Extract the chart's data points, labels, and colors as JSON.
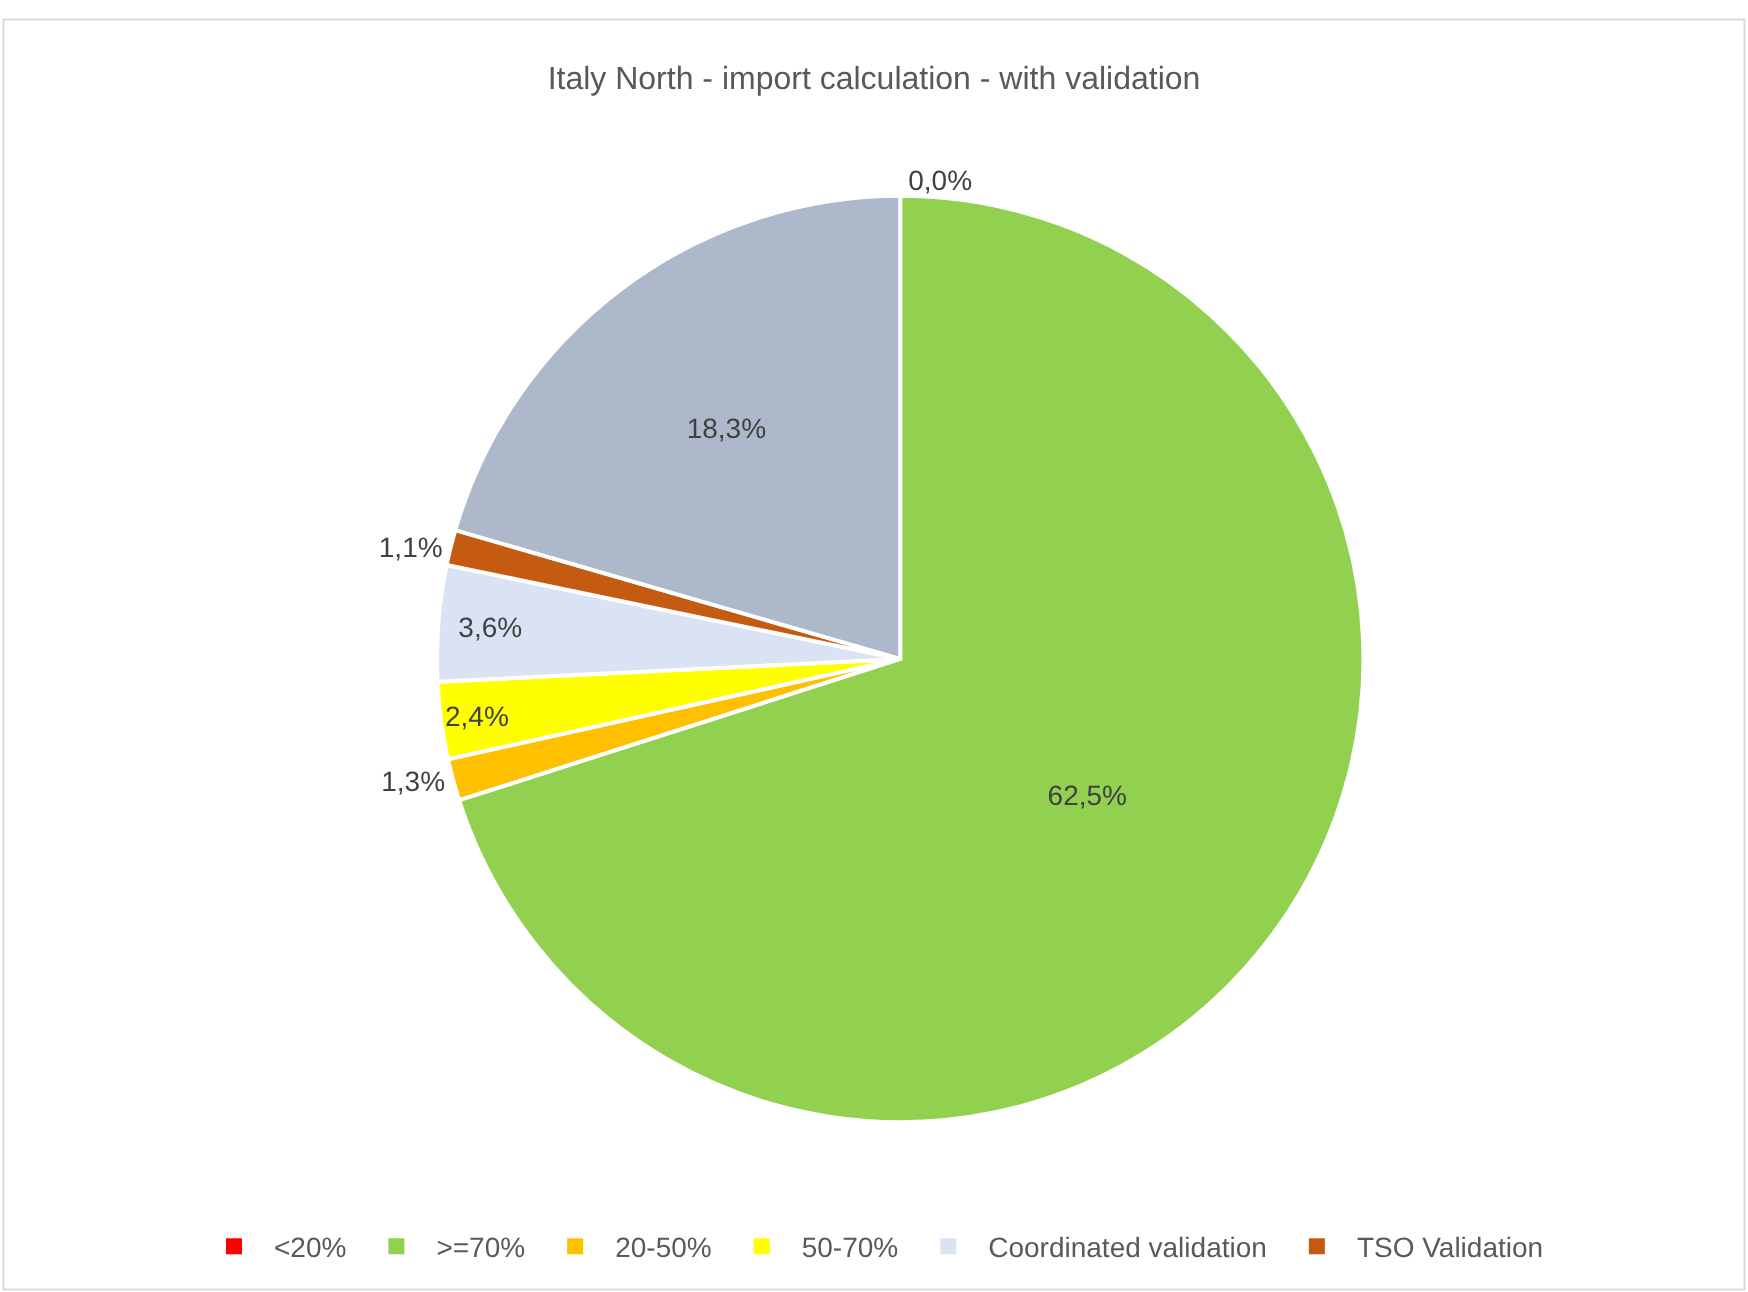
{
  "chart_data": {
    "type": "pie",
    "title": "Italy North - import calculation - with validation",
    "categories": [
      "<20%",
      ">=70%",
      "20-50%",
      "50-70%",
      "Coordinated validation",
      "TSO Validation",
      null
    ],
    "values": [
      0.0,
      62.5,
      1.3,
      2.4,
      3.6,
      1.1,
      18.3
    ],
    "value_labels": [
      "0,0%",
      "62,5%",
      "1,3%",
      "2,4%",
      "3,6%",
      "1,1%",
      "18,3%"
    ],
    "colors": [
      "#ff0000",
      "#92d050",
      "#ffc000",
      "#ffff00",
      "#dae3f3",
      "#c55a11",
      "#adb9ca"
    ],
    "legend": "bottom"
  }
}
